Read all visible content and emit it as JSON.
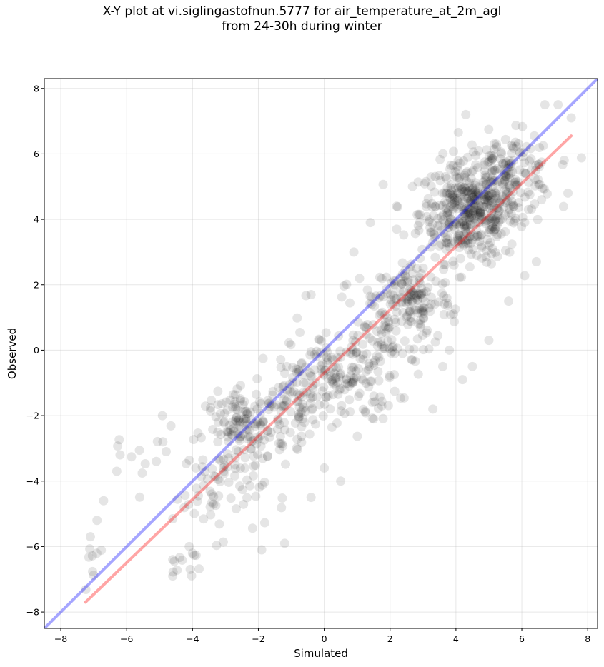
{
  "chart_data": {
    "type": "scatter",
    "title_line1": "X-Y plot at vi.siglingastofnun.5777 for air_temperature_at_2m_agl",
    "title_line2": "from 24-30h during winter",
    "xlabel": "Simulated",
    "ylabel": "Observed",
    "xlim": [
      -8.5,
      8.3
    ],
    "ylim": [
      -8.5,
      8.3
    ],
    "xticks": [
      -8,
      -6,
      -4,
      -2,
      0,
      2,
      4,
      6,
      8
    ],
    "yticks": [
      -8,
      -6,
      -4,
      -2,
      0,
      2,
      4,
      6,
      8
    ],
    "grid": true,
    "point_color": "#000000",
    "point_opacity": 0.1,
    "identity_line": {
      "color": "#0000ff",
      "opacity": 0.35,
      "x": [
        -8.5,
        8.3
      ],
      "y": [
        -8.5,
        8.3
      ]
    },
    "fit_line": {
      "color": "#ff0000",
      "opacity": 0.35,
      "x": [
        -7.25,
        7.5
      ],
      "y": [
        -7.7,
        6.55
      ]
    },
    "clusters": [
      {
        "cx": 4.4,
        "cy": 4.2,
        "sx": 0.75,
        "sy": 0.75,
        "n": 420
      },
      {
        "cx": 5.6,
        "cy": 5.4,
        "sx": 0.7,
        "sy": 0.6,
        "n": 150
      },
      {
        "cx": 2.7,
        "cy": 1.6,
        "sx": 0.6,
        "sy": 0.55,
        "n": 110
      },
      {
        "cx": 1.8,
        "cy": 0.8,
        "sx": 0.9,
        "sy": 0.8,
        "n": 100
      },
      {
        "cx": 0.6,
        "cy": -0.8,
        "sx": 0.8,
        "sy": 0.7,
        "n": 150
      },
      {
        "cx": -0.9,
        "cy": -1.6,
        "sx": 0.6,
        "sy": 0.6,
        "n": 90
      },
      {
        "cx": -2.4,
        "cy": -2.4,
        "sx": 0.6,
        "sy": 0.55,
        "n": 140
      },
      {
        "cx": -3.2,
        "cy": -4.3,
        "sx": 0.7,
        "sy": 0.7,
        "n": 60
      },
      {
        "cx": -5.6,
        "cy": -3.3,
        "sx": 0.6,
        "sy": 0.5,
        "n": 10
      },
      {
        "cx": -7.0,
        "cy": -6.6,
        "sx": 0.2,
        "sy": 0.5,
        "n": 8
      },
      {
        "cx": -4.3,
        "cy": -6.4,
        "sx": 0.3,
        "sy": 0.4,
        "n": 10
      }
    ],
    "outliers": [
      [
        4.3,
        7.2
      ],
      [
        6.7,
        7.5
      ],
      [
        7.1,
        7.5
      ],
      [
        7.5,
        7.1
      ],
      [
        7.4,
        4.8
      ],
      [
        5.6,
        1.5
      ],
      [
        5.0,
        0.3
      ],
      [
        4.5,
        -0.5
      ],
      [
        4.2,
        -0.9
      ],
      [
        3.8,
        0.0
      ],
      [
        3.6,
        -0.5
      ],
      [
        2.2,
        4.4
      ],
      [
        1.4,
        3.9
      ],
      [
        0.9,
        3.0
      ],
      [
        2.2,
        3.7
      ],
      [
        -0.4,
        1.7
      ],
      [
        -1.2,
        -5.9
      ],
      [
        -1.9,
        -6.1
      ],
      [
        0.0,
        -3.6
      ],
      [
        0.5,
        -4.0
      ],
      [
        -0.4,
        -4.5
      ],
      [
        -6.7,
        -4.6
      ],
      [
        -7.1,
        -5.7
      ],
      [
        -6.9,
        -5.2
      ],
      [
        -6.2,
        -3.2
      ],
      [
        -6.3,
        -3.7
      ],
      [
        -4.9,
        -2.8
      ],
      [
        -4.8,
        -3.1
      ],
      [
        -5.1,
        -3.4
      ],
      [
        -4.0,
        -6.2
      ],
      [
        -4.1,
        -6.0
      ],
      [
        -4.6,
        -6.4
      ],
      [
        -4.6,
        -6.9
      ],
      [
        1.5,
        -2.1
      ],
      [
        3.3,
        -1.8
      ],
      [
        6.6,
        4.6
      ]
    ]
  }
}
